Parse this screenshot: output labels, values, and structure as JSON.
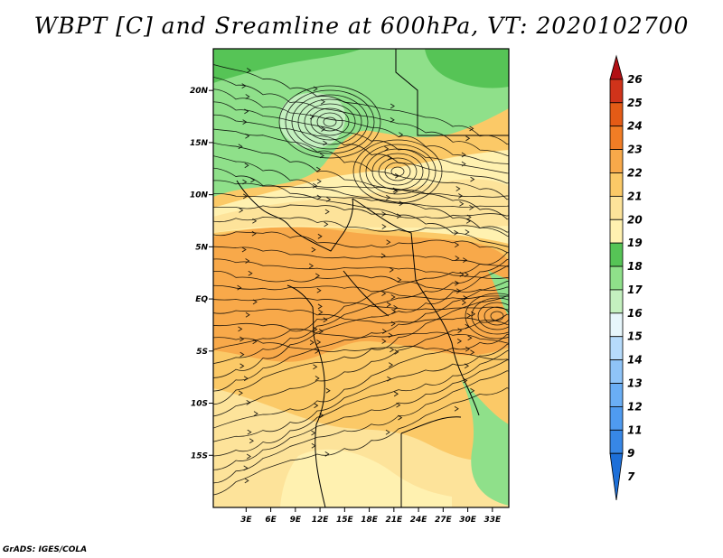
{
  "title": "WBPT [C] and Sreamline at 600hPa, VT: 2020102700",
  "credit": "GrADS: IGES/COLA",
  "map": {
    "lon_range": [
      -1,
      35
    ],
    "lat_range": [
      -20,
      24
    ],
    "x_ticks": [
      "3E",
      "6E",
      "9E",
      "12E",
      "15E",
      "18E",
      "21E",
      "24E",
      "27E",
      "30E",
      "33E"
    ],
    "x_tick_values": [
      3,
      6,
      9,
      12,
      15,
      18,
      21,
      24,
      27,
      30,
      33
    ],
    "y_ticks": [
      "20N",
      "15N",
      "10N",
      "5N",
      "EQ",
      "5S",
      "10S",
      "15S"
    ],
    "y_tick_values": [
      20,
      15,
      10,
      5,
      0,
      -5,
      -10,
      -15
    ]
  },
  "colorbar": {
    "labels": [
      "7",
      "9",
      "11",
      "12",
      "13",
      "14",
      "15",
      "16",
      "17",
      "18",
      "19",
      "20",
      "21",
      "22",
      "23",
      "24",
      "25",
      "26"
    ],
    "colors": [
      "#1d6fd8",
      "#3787e6",
      "#4f9bf0",
      "#6aaef5",
      "#8fc4f8",
      "#b6dbfb",
      "#e7f6fb",
      "#c4f0bf",
      "#8fe08a",
      "#56c456",
      "#fff1b0",
      "#fde39a",
      "#fbc967",
      "#f8a94a",
      "#f17d25",
      "#e45b16",
      "#d0331a",
      "#b11014"
    ]
  }
}
